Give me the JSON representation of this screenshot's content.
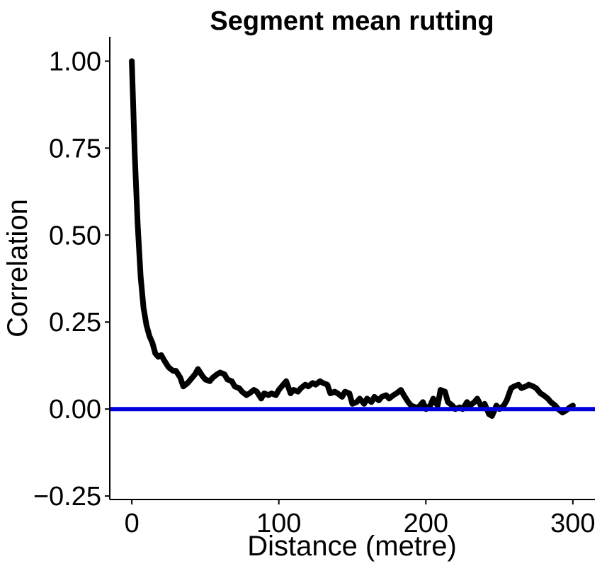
{
  "chart_data": {
    "type": "line",
    "title": "Segment mean rutting",
    "xlabel": "Distance (metre)",
    "ylabel": "Correlation",
    "xlim": [
      -15,
      315
    ],
    "ylim": [
      -0.26,
      1.07
    ],
    "x_ticks": [
      0,
      100,
      200,
      300
    ],
    "x_tick_labels": [
      "0",
      "100",
      "200",
      "300"
    ],
    "y_ticks": [
      -0.25,
      0.0,
      0.25,
      0.5,
      0.75,
      1.0
    ],
    "y_tick_labels": [
      "−0.25",
      "0.00",
      "0.25",
      "0.50",
      "0.75",
      "1.00"
    ],
    "grid": false,
    "legend": "none",
    "series": [
      {
        "color": "#000000",
        "x": [
          0,
          2,
          4,
          6,
          8,
          10,
          12,
          14,
          16,
          18,
          20,
          22,
          25,
          28,
          30,
          33,
          35,
          38,
          40,
          43,
          45,
          48,
          50,
          53,
          55,
          58,
          60,
          63,
          65,
          68,
          70,
          73,
          75,
          78,
          80,
          83,
          85,
          88,
          90,
          93,
          95,
          98,
          100,
          103,
          105,
          108,
          110,
          113,
          115,
          118,
          120,
          123,
          125,
          128,
          130,
          133,
          135,
          138,
          140,
          143,
          145,
          148,
          150,
          153,
          155,
          158,
          160,
          163,
          165,
          168,
          170,
          173,
          175,
          178,
          180,
          183,
          185,
          188,
          190,
          193,
          195,
          198,
          200,
          203,
          205,
          208,
          210,
          213,
          215,
          218,
          220,
          223,
          225,
          228,
          230,
          233,
          235,
          238,
          240,
          243,
          245,
          248,
          250,
          253,
          255,
          258,
          260,
          263,
          265,
          268,
          270,
          273,
          275,
          278,
          280,
          283,
          285,
          288,
          290,
          293,
          295,
          298,
          300
        ],
        "values": [
          1.0,
          0.73,
          0.53,
          0.38,
          0.29,
          0.24,
          0.21,
          0.19,
          0.16,
          0.15,
          0.155,
          0.14,
          0.12,
          0.11,
          0.11,
          0.09,
          0.065,
          0.075,
          0.085,
          0.1,
          0.115,
          0.095,
          0.085,
          0.08,
          0.09,
          0.1,
          0.105,
          0.1,
          0.085,
          0.08,
          0.065,
          0.06,
          0.05,
          0.04,
          0.045,
          0.055,
          0.05,
          0.03,
          0.045,
          0.04,
          0.045,
          0.04,
          0.055,
          0.07,
          0.08,
          0.045,
          0.055,
          0.05,
          0.06,
          0.07,
          0.065,
          0.075,
          0.07,
          0.08,
          0.075,
          0.07,
          0.045,
          0.05,
          0.045,
          0.035,
          0.05,
          0.045,
          0.015,
          0.02,
          0.03,
          0.015,
          0.03,
          0.02,
          0.035,
          0.025,
          0.035,
          0.04,
          0.03,
          0.04,
          0.045,
          0.055,
          0.04,
          0.02,
          0.01,
          0.005,
          0.005,
          0.02,
          0.0,
          0.01,
          0.03,
          0.01,
          0.055,
          0.05,
          0.02,
          0.01,
          0.0,
          0.005,
          0.0,
          0.02,
          0.01,
          0.02,
          0.03,
          0.005,
          0.015,
          -0.015,
          -0.02,
          0.01,
          0.0,
          0.01,
          0.025,
          0.06,
          0.065,
          0.07,
          0.06,
          0.065,
          0.07,
          0.065,
          0.06,
          0.045,
          0.04,
          0.03,
          0.02,
          0.01,
          0.0,
          -0.01,
          -0.005,
          0.005,
          0.01
        ]
      },
      {
        "color": "#0000dd",
        "x": [
          -15,
          315
        ],
        "values": [
          0.0,
          0.0
        ]
      }
    ]
  }
}
